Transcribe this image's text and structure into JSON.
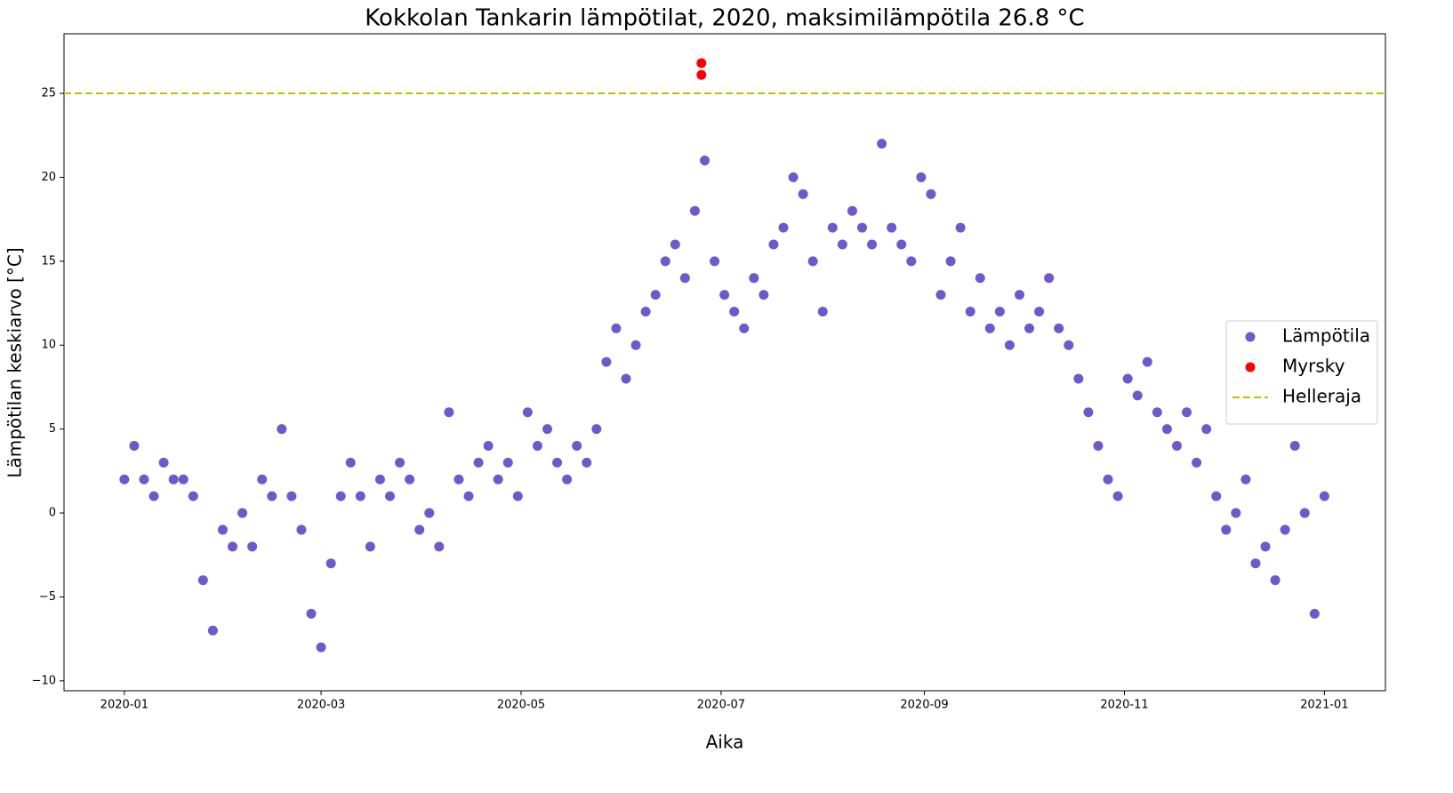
{
  "chart_data": {
    "type": "scatter",
    "title": "Kokkolan Tankarin lämpötilat, 2020, maksimilämpötila 26.8 °C",
    "xlabel": "Aika",
    "ylabel": "Lämpötilan keskiarvo [°C]",
    "xlim": [
      -18.4,
      384.6
    ],
    "ylim": [
      -10.59,
      28.55
    ],
    "xticks": [
      {
        "value": 0,
        "label": "2020-01"
      },
      {
        "value": 60,
        "label": "2020-03"
      },
      {
        "value": 121,
        "label": "2020-05"
      },
      {
        "value": 182,
        "label": "2020-07"
      },
      {
        "value": 244,
        "label": "2020-09"
      },
      {
        "value": 305,
        "label": "2020-11"
      },
      {
        "value": 366,
        "label": "2021-01"
      }
    ],
    "yticks": [
      {
        "value": -10,
        "label": "−10"
      },
      {
        "value": -5,
        "label": "−5"
      },
      0,
      5,
      10,
      15,
      20,
      25
    ],
    "legend": "center right",
    "series": [
      {
        "name": "Lämpötila",
        "color": "#6a5acd",
        "x": [
          0,
          3,
          6,
          9,
          12,
          15,
          18,
          21,
          24,
          27,
          30,
          33,
          36,
          39,
          42,
          45,
          48,
          51,
          54,
          57,
          60,
          63,
          66,
          69,
          72,
          75,
          78,
          81,
          84,
          87,
          90,
          93,
          96,
          99,
          102,
          105,
          108,
          111,
          114,
          117,
          120,
          123,
          126,
          129,
          132,
          135,
          138,
          141,
          144,
          147,
          150,
          153,
          156,
          159,
          162,
          165,
          168,
          171,
          174,
          177,
          180,
          183,
          186,
          189,
          192,
          195,
          198,
          201,
          204,
          207,
          210,
          213,
          216,
          219,
          222,
          225,
          228,
          231,
          234,
          237,
          240,
          243,
          246,
          249,
          252,
          255,
          258,
          261,
          264,
          267,
          270,
          273,
          276,
          279,
          282,
          285,
          288,
          291,
          294,
          297,
          300,
          303,
          306,
          309,
          312,
          315,
          318,
          321,
          324,
          327,
          330,
          333,
          336,
          339,
          342,
          345,
          348,
          351,
          354,
          357,
          360,
          363,
          366
        ],
        "values": [
          2,
          4,
          2,
          1,
          3,
          2,
          2,
          1,
          -4,
          -7,
          -1,
          -2,
          0,
          -2,
          2,
          1,
          5,
          1,
          -1,
          -6,
          -8,
          -3,
          1,
          3,
          1,
          -2,
          2,
          1,
          3,
          2,
          -1,
          0,
          -2,
          6,
          2,
          1,
          3,
          4,
          2,
          3,
          1,
          6,
          4,
          5,
          3,
          2,
          4,
          3,
          5,
          9,
          11,
          8,
          10,
          12,
          13,
          15,
          16,
          14,
          18,
          21,
          15,
          13,
          12,
          11,
          14,
          13,
          16,
          17,
          20,
          19,
          15,
          12,
          17,
          16,
          18,
          17,
          16,
          22,
          17,
          16,
          15,
          20,
          19,
          13,
          15,
          17,
          12,
          14,
          11,
          12,
          10,
          13,
          11,
          12,
          14,
          11,
          10,
          8,
          6,
          4,
          2,
          1,
          8,
          7,
          9,
          6,
          5,
          4,
          6,
          3,
          5,
          1,
          -1,
          0,
          2,
          -3,
          -2,
          -4,
          -1,
          4,
          0,
          -6,
          1
        ]
      },
      {
        "name": "Myrsky",
        "color": "#ff0000",
        "x": [
          176,
          176
        ],
        "values": [
          26.8,
          26.1
        ]
      }
    ],
    "hlines": [
      {
        "name": "Helleraja",
        "value": 25,
        "color": "#bfbf00"
      }
    ]
  }
}
